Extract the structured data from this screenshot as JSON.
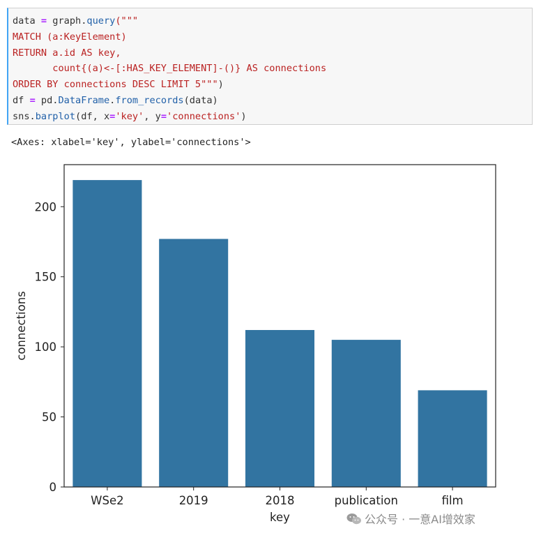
{
  "code_cell": {
    "lines": [
      [
        {
          "t": "data ",
          "c": ""
        },
        {
          "t": "=",
          "c": "k"
        },
        {
          "t": " graph.",
          "c": ""
        },
        {
          "t": "query",
          "c": "f"
        },
        {
          "t": "(\"\"\"",
          "c": "s"
        }
      ],
      [
        {
          "t": "MATCH (a:KeyElement)",
          "c": "s"
        }
      ],
      [
        {
          "t": "RETURN a.id AS key,",
          "c": "s"
        }
      ],
      [
        {
          "t": "       count{(a)<-[:HAS_KEY_ELEMENT]-()} AS connections",
          "c": "s"
        }
      ],
      [
        {
          "t": "ORDER BY connections DESC LIMIT 5\"\"\"",
          "c": "s"
        },
        {
          "t": ")",
          "c": ""
        }
      ],
      [
        {
          "t": "df ",
          "c": ""
        },
        {
          "t": "=",
          "c": "k"
        },
        {
          "t": " pd.",
          "c": ""
        },
        {
          "t": "DataFrame",
          "c": "f"
        },
        {
          "t": ".",
          "c": ""
        },
        {
          "t": "from_records",
          "c": "f"
        },
        {
          "t": "(data)",
          "c": ""
        }
      ],
      [
        {
          "t": "sns.",
          "c": ""
        },
        {
          "t": "barplot",
          "c": "f"
        },
        {
          "t": "(df, x",
          "c": ""
        },
        {
          "t": "=",
          "c": "k"
        },
        {
          "t": "'key'",
          "c": "s"
        },
        {
          "t": ", y",
          "c": ""
        },
        {
          "t": "=",
          "c": "k"
        },
        {
          "t": "'connections'",
          "c": "s"
        },
        {
          "t": ")",
          "c": ""
        }
      ]
    ]
  },
  "output_text": "<Axes: xlabel='key', ylabel='connections'>",
  "chart_data": {
    "type": "bar",
    "categories": [
      "WSe2",
      "2019",
      "2018",
      "publication",
      "film"
    ],
    "values": [
      219,
      177,
      112,
      105,
      69
    ],
    "xlabel": "key",
    "ylabel": "connections",
    "ylim": [
      0,
      230
    ],
    "yticks": [
      0,
      50,
      100,
      150,
      200
    ],
    "bar_color": "#3274a1",
    "grid": false
  },
  "watermark": {
    "text": "公众号 · 一意AI增效家",
    "icon": "wechat-icon"
  }
}
